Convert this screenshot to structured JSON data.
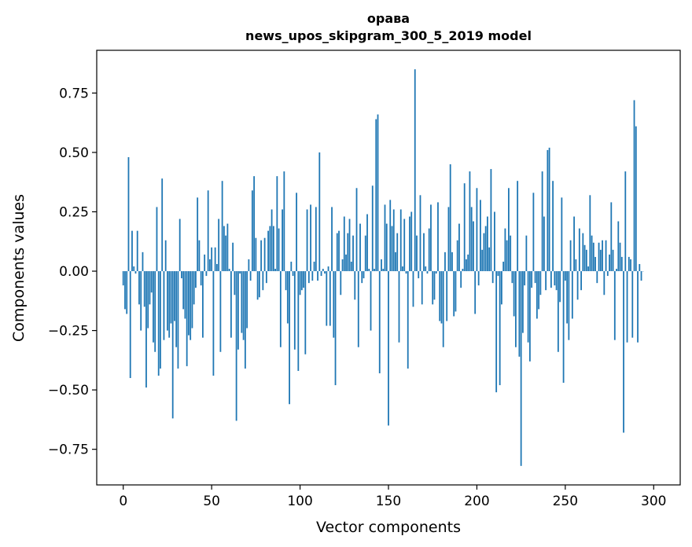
{
  "chart_data": {
    "type": "bar",
    "title_line1": "орава",
    "title_line2": "news_upos_skipgram_300_5_2019 model",
    "xlabel": "Vector components",
    "ylabel": "Components values",
    "xlim": [
      -15,
      315
    ],
    "ylim": [
      -0.9,
      0.93
    ],
    "xticks": [
      0,
      50,
      100,
      150,
      200,
      250,
      300
    ],
    "xtick_labels": [
      "0",
      "50",
      "100",
      "150",
      "200",
      "250",
      "300"
    ],
    "yticks": [
      -0.75,
      -0.5,
      -0.25,
      0.0,
      0.25,
      0.5,
      0.75
    ],
    "ytick_labels": [
      "−0.75",
      "−0.50",
      "−0.25",
      "0.00",
      "0.25",
      "0.50",
      "0.75"
    ],
    "bar_color": "#1f77b4",
    "values": [
      -0.06,
      -0.16,
      -0.18,
      0.48,
      -0.45,
      0.17,
      0.02,
      -0.01,
      0.17,
      -0.14,
      -0.25,
      0.08,
      -0.15,
      -0.49,
      -0.24,
      -0.14,
      -0.09,
      -0.3,
      -0.34,
      0.27,
      -0.44,
      -0.41,
      0.39,
      -0.29,
      0.13,
      -0.25,
      -0.28,
      -0.22,
      -0.62,
      -0.21,
      -0.32,
      -0.41,
      0.22,
      -0.03,
      -0.16,
      -0.2,
      -0.4,
      -0.27,
      -0.29,
      -0.24,
      -0.14,
      -0.07,
      0.31,
      0.13,
      -0.06,
      -0.28,
      0.07,
      -0.02,
      0.34,
      0.05,
      0.1,
      -0.44,
      0.1,
      0.03,
      0.22,
      -0.34,
      0.38,
      0.19,
      0.15,
      0.2,
      0.01,
      -0.28,
      0.12,
      -0.1,
      -0.63,
      -0.33,
      -0.01,
      -0.26,
      -0.29,
      -0.41,
      -0.24,
      0.05,
      -0.04,
      0.34,
      0.4,
      0.14,
      -0.12,
      -0.11,
      0.13,
      -0.08,
      0.14,
      -0.05,
      0.17,
      0.19,
      0.26,
      0.19,
      0.01,
      0.4,
      0.18,
      -0.32,
      0.26,
      0.42,
      -0.08,
      -0.22,
      -0.56,
      0.04,
      -0.02,
      -0.33,
      0.33,
      -0.42,
      -0.1,
      -0.08,
      -0.07,
      -0.35,
      0.26,
      -0.05,
      0.28,
      -0.04,
      0.04,
      0.27,
      -0.04,
      0.5,
      -0.02,
      0.01,
      -0.01,
      -0.23,
      0.02,
      -0.23,
      0.27,
      -0.28,
      -0.48,
      0.16,
      0.17,
      -0.1,
      0.05,
      0.23,
      0.07,
      0.16,
      0.22,
      0.04,
      0.15,
      -0.12,
      0.35,
      -0.32,
      0.2,
      -0.05,
      -0.03,
      0.15,
      0.24,
      0.01,
      -0.25,
      0.36,
      0.01,
      0.64,
      0.66,
      -0.43,
      0.05,
      0.01,
      0.28,
      0.2,
      -0.65,
      0.3,
      0.19,
      0.26,
      0.08,
      0.16,
      -0.3,
      0.26,
      0.02,
      0.22,
      -0.01,
      -0.41,
      0.23,
      0.25,
      -0.15,
      0.85,
      0.15,
      -0.03,
      0.32,
      -0.14,
      0.16,
      0.02,
      -0.01,
      0.18,
      0.28,
      -0.14,
      -0.12,
      -0.01,
      0.29,
      -0.21,
      -0.22,
      -0.32,
      0.08,
      -0.21,
      0.27,
      0.45,
      0.08,
      -0.19,
      -0.17,
      0.13,
      0.2,
      -0.07,
      0.01,
      0.37,
      0.05,
      0.07,
      0.42,
      0.27,
      0.21,
      -0.18,
      0.35,
      -0.06,
      0.3,
      0.09,
      0.16,
      0.19,
      0.23,
      0.1,
      0.43,
      -0.05,
      0.25,
      -0.51,
      -0.02,
      -0.48,
      -0.14,
      0.04,
      0.18,
      0.13,
      0.35,
      0.15,
      -0.05,
      -0.19,
      -0.32,
      0.38,
      -0.36,
      -0.82,
      -0.26,
      -0.06,
      0.15,
      -0.3,
      -0.38,
      -0.07,
      0.33,
      -0.05,
      -0.2,
      -0.16,
      -0.1,
      0.42,
      0.23,
      -0.08,
      0.51,
      0.52,
      -0.07,
      0.38,
      -0.06,
      -0.08,
      -0.34,
      -0.13,
      0.31,
      -0.47,
      -0.04,
      -0.22,
      -0.29,
      0.13,
      -0.2,
      0.23,
      0.05,
      -0.12,
      0.18,
      -0.08,
      0.16,
      0.11,
      0.09,
      0.02,
      0.32,
      0.15,
      0.12,
      0.06,
      -0.05,
      0.12,
      0.09,
      0.13,
      -0.1,
      0.13,
      -0.02,
      0.07,
      0.29,
      0.09,
      -0.29,
      0.01,
      0.21,
      0.12,
      0.06,
      -0.68,
      0.42,
      -0.3,
      0.06,
      0.05,
      -0.28,
      0.72,
      0.61,
      -0.3,
      0.03,
      -0.04,
      0.0
    ]
  }
}
